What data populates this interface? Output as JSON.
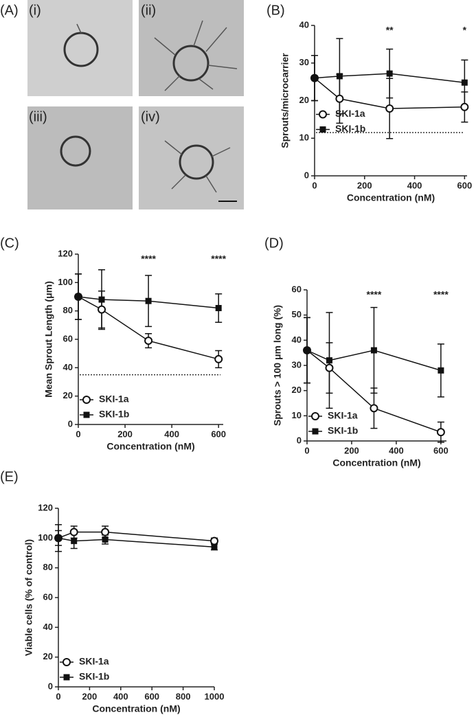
{
  "panel_a": {
    "label": "(A)",
    "images": [
      "(i)",
      "(ii)",
      "(iii)",
      "(iv)"
    ]
  },
  "chart_data": [
    {
      "type": "line",
      "panel_label": "(B)",
      "x_label": "Concentration (nM)",
      "y_label": "Sprouts/microcarrier",
      "x": [
        0,
        100,
        300,
        600
      ],
      "xlim": [
        0,
        610
      ],
      "xticks": [
        0,
        200,
        400,
        600
      ],
      "ylim": [
        0,
        40
      ],
      "yticks": [
        0,
        10,
        20,
        30,
        40
      ],
      "grid": false,
      "legend": "center left",
      "reference_line": 11.5,
      "annotations": [
        {
          "text": "**",
          "x": 300
        },
        {
          "text": "*",
          "x": 600
        }
      ],
      "series": [
        {
          "name": "SKI-1a",
          "marker": "circle-open",
          "color": "#111111",
          "values": [
            26,
            20.5,
            17.9,
            18.3
          ],
          "errors": [
            6,
            6.5,
            8,
            4
          ]
        },
        {
          "name": "SKI-1b",
          "marker": "square",
          "color": "#111111",
          "values": [
            26,
            26.5,
            27.2,
            24.8
          ],
          "errors": [
            6,
            10,
            6.5,
            6
          ]
        }
      ]
    },
    {
      "type": "line",
      "panel_label": "(C)",
      "x_label": "Concentration (nM)",
      "y_label": "Mean Sprout Length (μm)",
      "x": [
        0,
        100,
        300,
        600
      ],
      "xlim": [
        0,
        620
      ],
      "xticks": [
        0,
        200,
        400,
        600
      ],
      "ylim": [
        0,
        120
      ],
      "yticks": [
        0,
        20,
        40,
        60,
        80,
        100,
        120
      ],
      "grid": false,
      "legend": "lower left",
      "reference_line": 35,
      "annotations": [
        {
          "text": "****",
          "x": 300
        },
        {
          "text": "****",
          "x": 600
        }
      ],
      "series": [
        {
          "name": "SKI-1a",
          "marker": "circle-open",
          "color": "#111111",
          "values": [
            90,
            81,
            59,
            46
          ],
          "errors": [
            16,
            13,
            5,
            6
          ]
        },
        {
          "name": "SKI-1b",
          "marker": "square",
          "color": "#111111",
          "values": [
            90,
            88,
            87,
            82
          ],
          "errors": [
            16,
            21,
            18,
            10
          ]
        }
      ]
    },
    {
      "type": "line",
      "panel_label": "(D)",
      "x_label": "Concentration (nM)",
      "y_label": "Sprouts > 100 μm long (%)",
      "x": [
        0,
        100,
        300,
        600
      ],
      "xlim": [
        0,
        625
      ],
      "xticks": [
        0,
        200,
        400,
        600
      ],
      "ylim": [
        0,
        60
      ],
      "yticks": [
        0,
        10,
        20,
        30,
        40,
        50,
        60
      ],
      "grid": false,
      "legend": "lower left",
      "annotations": [
        {
          "text": "****",
          "x": 300
        },
        {
          "text": "****",
          "x": 600
        }
      ],
      "series": [
        {
          "name": "SKI-1a",
          "marker": "circle-open",
          "color": "#111111",
          "values": [
            36,
            29,
            13,
            3.5
          ],
          "errors": [
            13,
            10,
            8,
            4
          ]
        },
        {
          "name": "SKI-1b",
          "marker": "square",
          "color": "#111111",
          "values": [
            36,
            32,
            36,
            28
          ],
          "errors": [
            13,
            19,
            17,
            10.5
          ]
        }
      ]
    },
    {
      "type": "line",
      "panel_label": "(E)",
      "x_label": "Concentration (nM)",
      "y_label": "Viable cells (% of control)",
      "x": [
        0,
        100,
        300,
        1000
      ],
      "xlim": [
        0,
        1000
      ],
      "xticks": [
        0,
        200,
        400,
        600,
        800,
        1000
      ],
      "ylim": [
        0,
        120
      ],
      "yticks": [
        0,
        20,
        40,
        60,
        80,
        100,
        120
      ],
      "grid": false,
      "legend": "lower left",
      "series": [
        {
          "name": "SKI-1a",
          "marker": "circle-open",
          "color": "#111111",
          "values": [
            100,
            104,
            104,
            98
          ],
          "errors": [
            9,
            4,
            4,
            2
          ]
        },
        {
          "name": "SKI-1b",
          "marker": "square",
          "color": "#111111",
          "values": [
            100,
            98,
            99,
            94
          ],
          "errors": [
            5,
            5,
            3,
            2
          ]
        }
      ]
    }
  ]
}
